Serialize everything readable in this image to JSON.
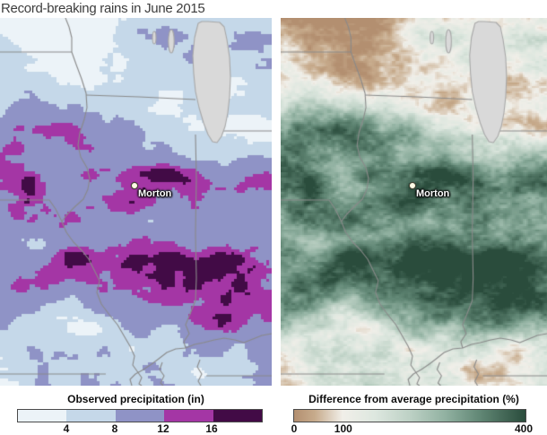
{
  "title": "Record-breaking rains in June 2015",
  "left_panel": {
    "legend_title": "Observed precipitation (in)",
    "city_label": "Morton",
    "ticks": [
      "4",
      "8",
      "12",
      "16"
    ],
    "tick_positions": [
      0.2,
      0.4,
      0.6,
      0.8
    ],
    "bin_edges_in": [
      4,
      8,
      12,
      16
    ],
    "palette": [
      "#ecf3f8",
      "#c5d8e9",
      "#8f93c6",
      "#a436a5",
      "#420b46"
    ]
  },
  "right_panel": {
    "legend_title": "Difference from average precipitation (%)",
    "city_label": "Morton",
    "ticks": [
      "0",
      "100",
      "400"
    ],
    "tick_positions": [
      0.0,
      0.214,
      1.0
    ],
    "scale_range_pct": [
      0,
      400
    ],
    "gradient": [
      [
        0,
        "#b38f70"
      ],
      [
        0.09,
        "#c7ab8c"
      ],
      [
        0.21,
        "#f1efe9"
      ],
      [
        0.35,
        "#dde7df"
      ],
      [
        0.5,
        "#bdd1c5"
      ],
      [
        0.65,
        "#92b2a2"
      ],
      [
        0.8,
        "#628876"
      ],
      [
        1,
        "#2a4c3c"
      ]
    ]
  },
  "map_colors": {
    "lake": "#d9d9d9",
    "lake_outline": "#a8a8a8",
    "state_border": "#8a8a8a"
  }
}
